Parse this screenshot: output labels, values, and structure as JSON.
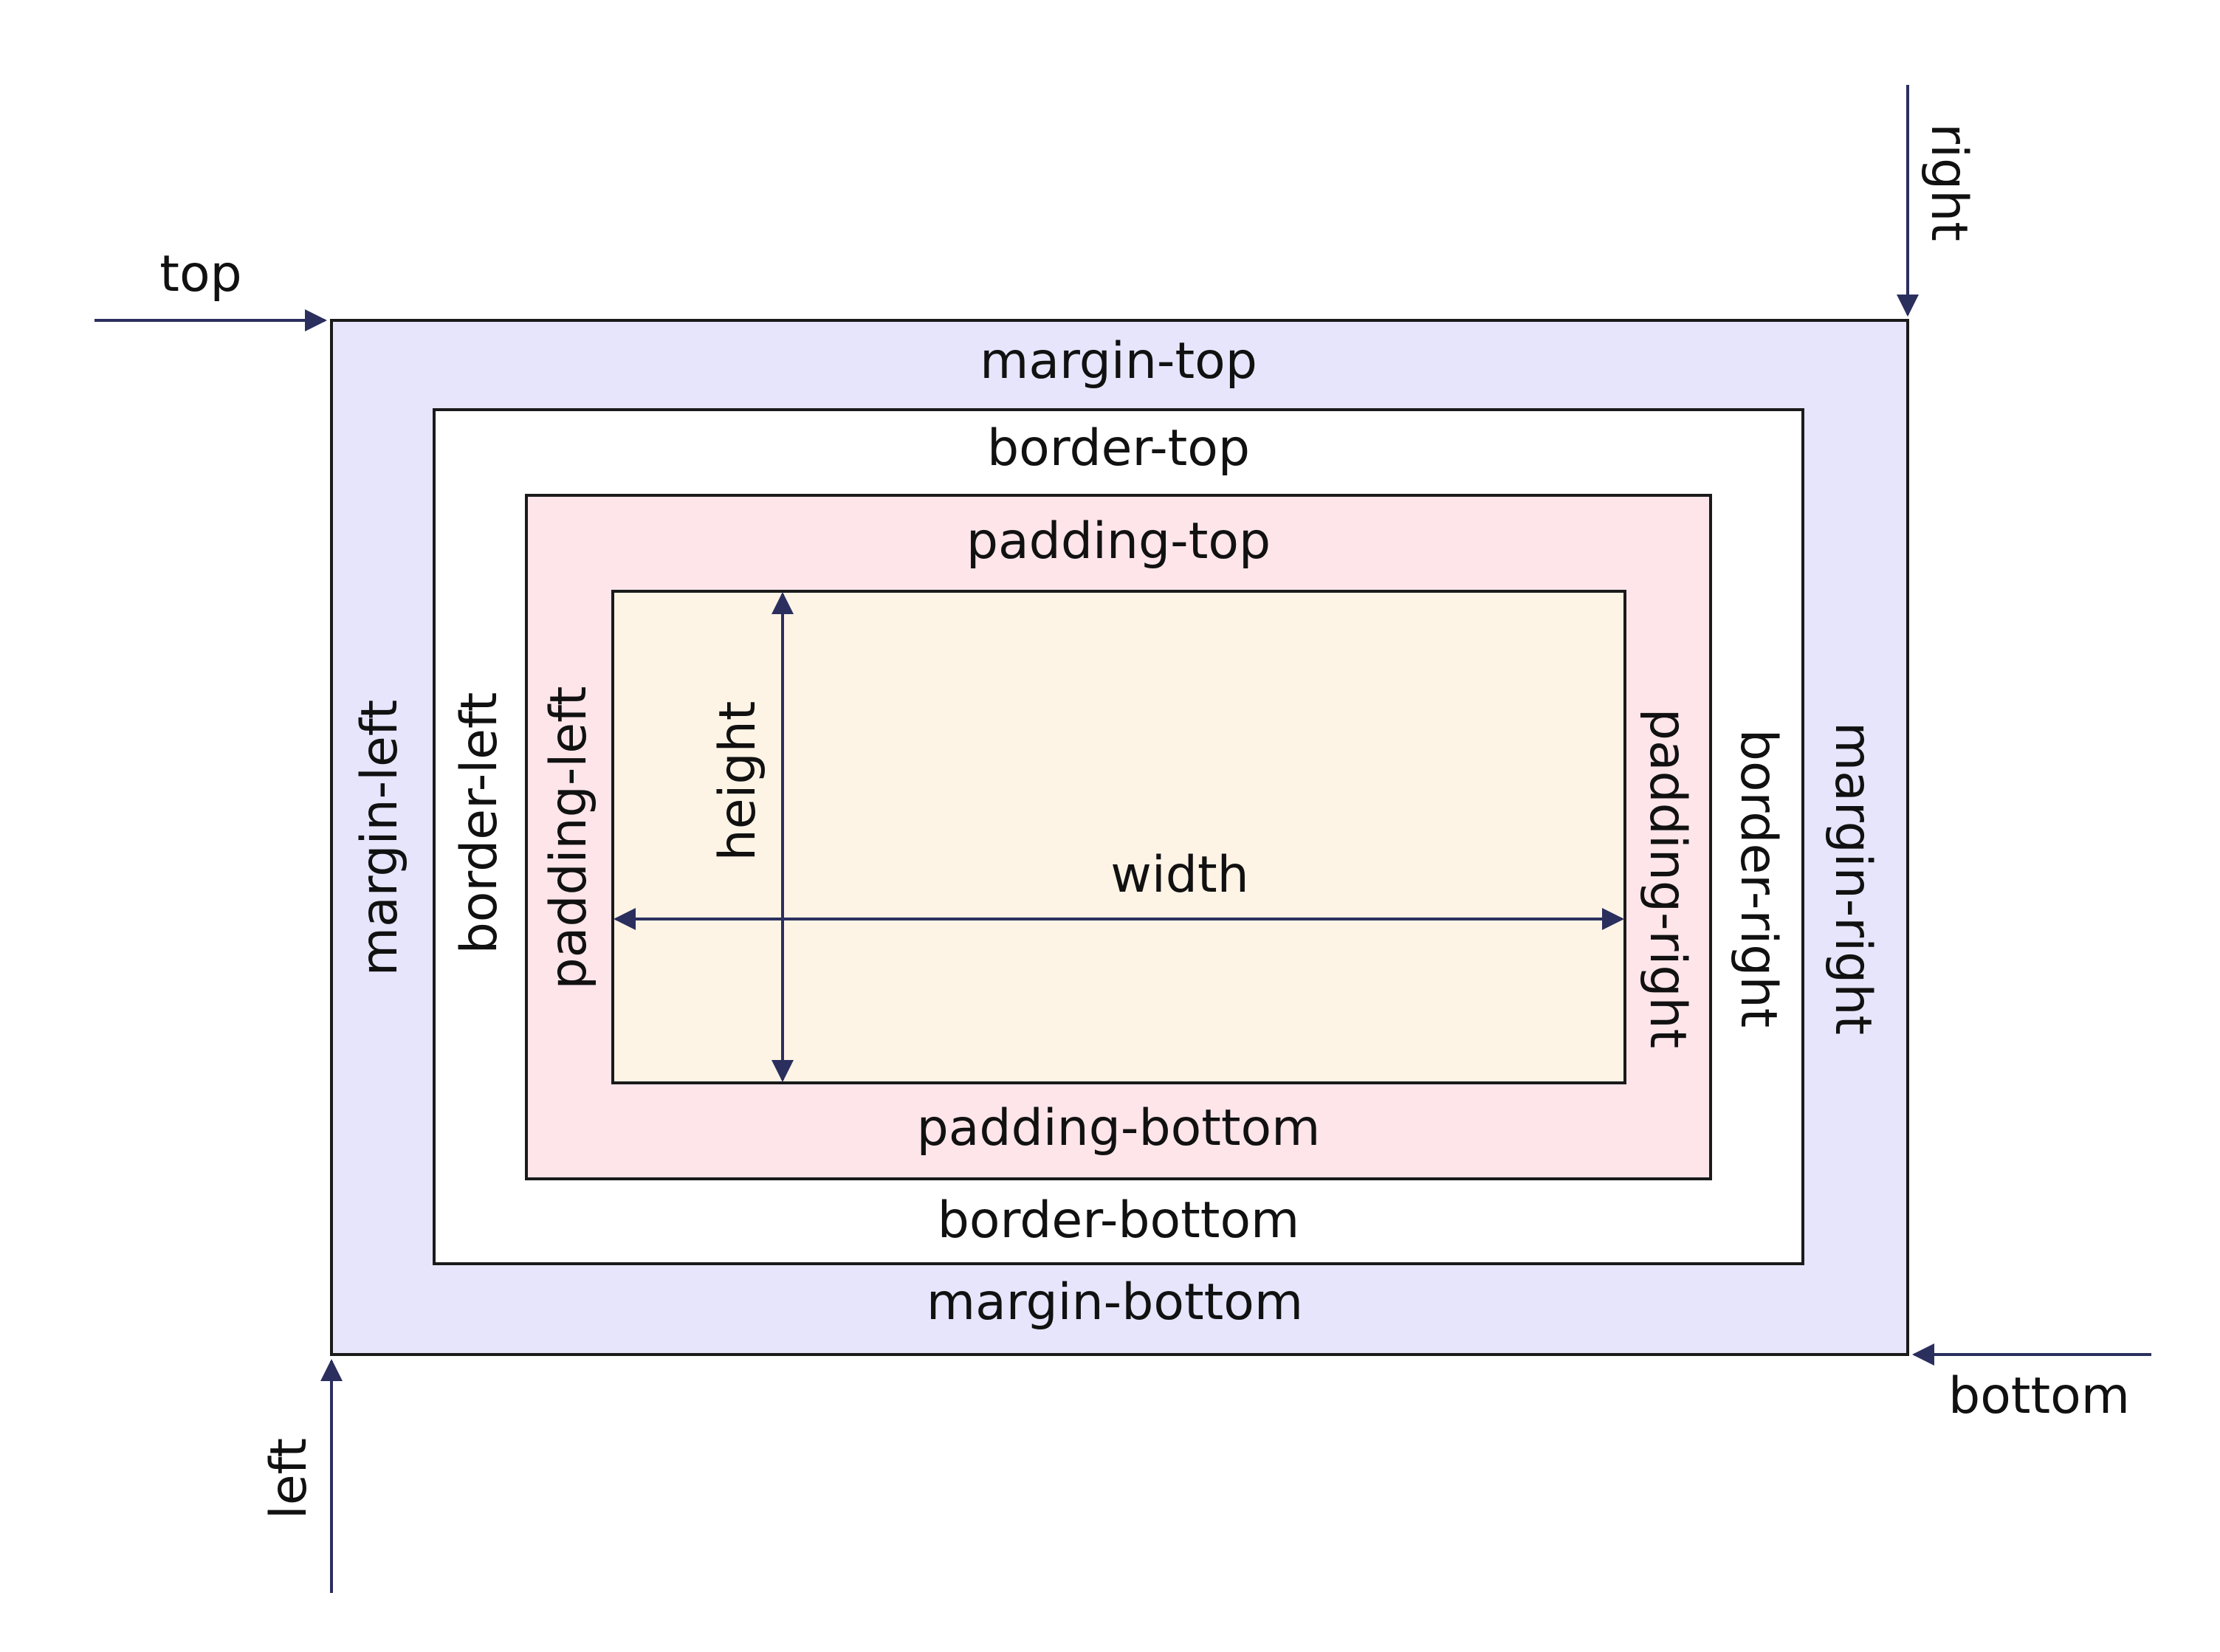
{
  "colors": {
    "margin_fill": "#e6e5fc",
    "border_fill": "#ffffff",
    "padding_fill": "#fde5ea",
    "content_fill": "#fdf4e6",
    "arrow": "#2b2f5e",
    "stroke": "#1a1a1a"
  },
  "labels": {
    "top": "top",
    "right": "right",
    "bottom": "bottom",
    "left": "left",
    "margin_top": "margin-top",
    "margin_bottom": "margin-bottom",
    "margin_left": "margin-left",
    "margin_right": "margin-right",
    "border_top": "border-top",
    "border_bottom": "border-bottom",
    "border_left": "border-left",
    "border_right": "border-right",
    "padding_top": "padding-top",
    "padding_bottom": "padding-bottom",
    "padding_left": "padding-left",
    "padding_right": "padding-right",
    "width": "width",
    "height": "height"
  }
}
